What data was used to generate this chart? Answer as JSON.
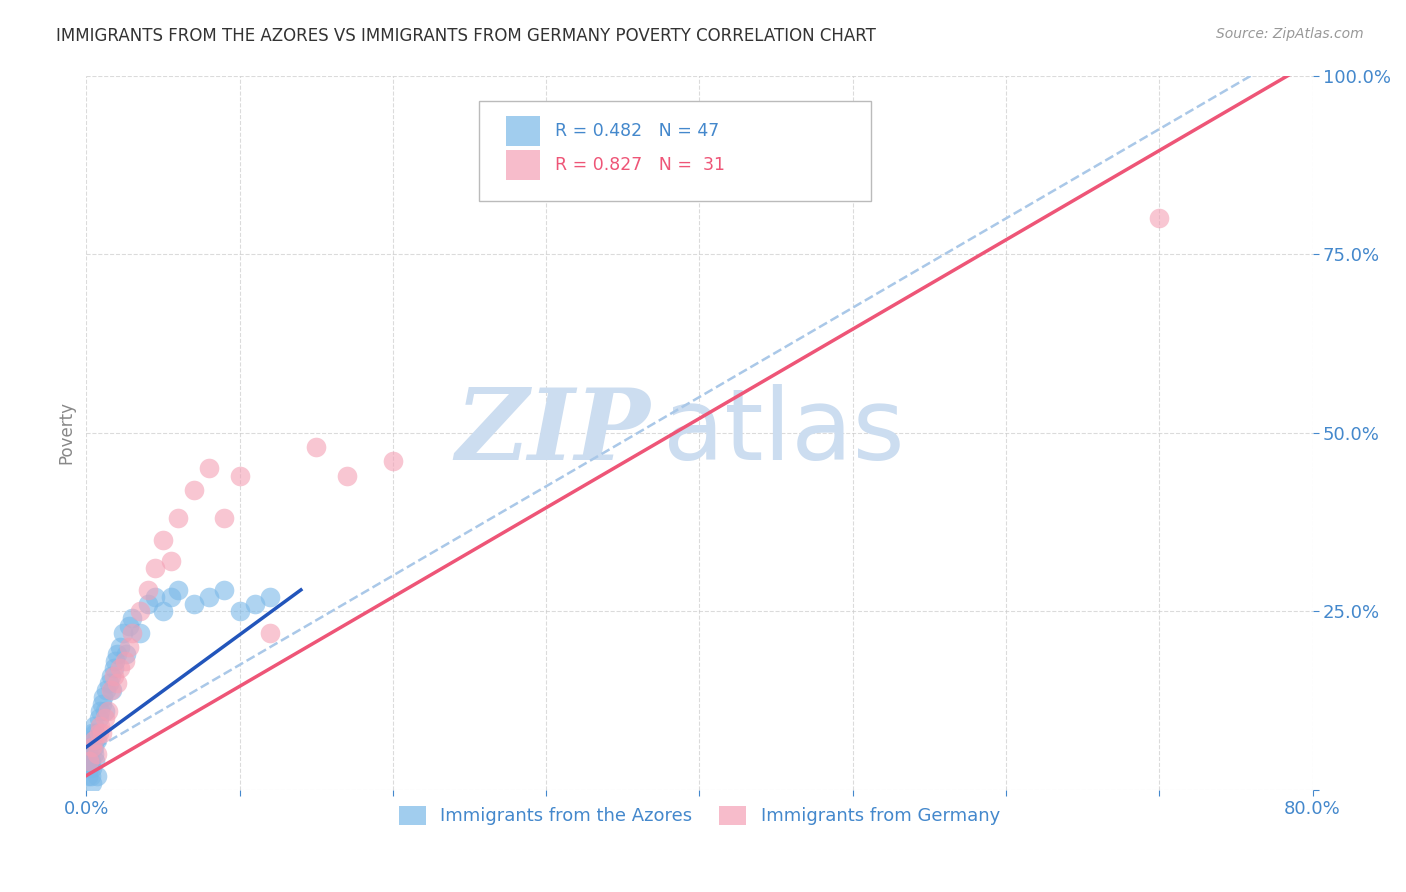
{
  "title": "IMMIGRANTS FROM THE AZORES VS IMMIGRANTS FROM GERMANY POVERTY CORRELATION CHART",
  "source": "Source: ZipAtlas.com",
  "ylabel": "Poverty",
  "xlim": [
    0.0,
    0.8
  ],
  "ylim": [
    0.0,
    1.0
  ],
  "legend_R_blue": "R = 0.482",
  "legend_N_blue": "N = 47",
  "legend_R_pink": "R = 0.827",
  "legend_N_pink": "N =  31",
  "legend_label_blue": "Immigrants from the Azores",
  "legend_label_pink": "Immigrants from Germany",
  "watermark_zip": "ZIP",
  "watermark_atlas": "atlas",
  "watermark_color": "#ccddf0",
  "blue_color": "#7ab8e8",
  "pink_color": "#f4a0b5",
  "blue_line_color": "#2255bb",
  "pink_line_color": "#ee5577",
  "dashed_line_color": "#aac8e8",
  "title_fontsize": 12,
  "axis_label_color": "#4488cc",
  "tick_color": "#4488cc",
  "blue_scatter_x": [
    0.002,
    0.003,
    0.004,
    0.005,
    0.006,
    0.007,
    0.008,
    0.009,
    0.01,
    0.011,
    0.012,
    0.013,
    0.015,
    0.016,
    0.017,
    0.018,
    0.019,
    0.02,
    0.022,
    0.024,
    0.026,
    0.028,
    0.03,
    0.035,
    0.04,
    0.045,
    0.05,
    0.055,
    0.06,
    0.07,
    0.08,
    0.09,
    0.1,
    0.11,
    0.12,
    0.003,
    0.004,
    0.005,
    0.006,
    0.007,
    0.002,
    0.001,
    0.002,
    0.003,
    0.004,
    0.001,
    0.005
  ],
  "blue_scatter_y": [
    0.06,
    0.07,
    0.08,
    0.09,
    0.08,
    0.07,
    0.1,
    0.11,
    0.12,
    0.13,
    0.11,
    0.14,
    0.15,
    0.16,
    0.14,
    0.17,
    0.18,
    0.19,
    0.2,
    0.22,
    0.19,
    0.23,
    0.24,
    0.22,
    0.26,
    0.27,
    0.25,
    0.27,
    0.28,
    0.26,
    0.27,
    0.28,
    0.25,
    0.26,
    0.27,
    0.04,
    0.03,
    0.05,
    0.04,
    0.02,
    0.03,
    0.05,
    0.04,
    0.02,
    0.01,
    0.02,
    0.06
  ],
  "pink_scatter_x": [
    0.002,
    0.004,
    0.005,
    0.007,
    0.008,
    0.009,
    0.01,
    0.012,
    0.014,
    0.016,
    0.018,
    0.02,
    0.022,
    0.025,
    0.028,
    0.03,
    0.035,
    0.04,
    0.045,
    0.05,
    0.055,
    0.06,
    0.07,
    0.08,
    0.09,
    0.1,
    0.12,
    0.15,
    0.17,
    0.2,
    0.7
  ],
  "pink_scatter_y": [
    0.04,
    0.06,
    0.07,
    0.05,
    0.08,
    0.09,
    0.08,
    0.1,
    0.11,
    0.14,
    0.16,
    0.15,
    0.17,
    0.18,
    0.2,
    0.22,
    0.25,
    0.28,
    0.31,
    0.35,
    0.32,
    0.38,
    0.42,
    0.45,
    0.38,
    0.44,
    0.22,
    0.48,
    0.44,
    0.46,
    0.8
  ],
  "blue_line_x": [
    0.0,
    0.14
  ],
  "blue_line_y": [
    0.06,
    0.28
  ],
  "pink_line_x": [
    0.0,
    0.8
  ],
  "pink_line_y": [
    0.02,
    1.02
  ],
  "dashed_line_x": [
    0.0,
    0.8
  ],
  "dashed_line_y": [
    0.05,
    1.05
  ]
}
